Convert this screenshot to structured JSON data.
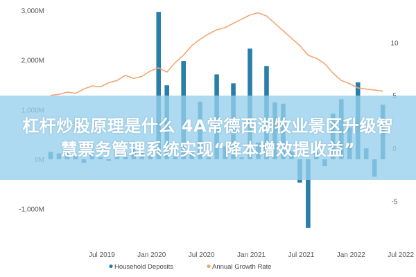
{
  "chart_data": {
    "type": "bar",
    "y_left": {
      "ylim": [
        -1500,
        3000
      ],
      "ticks": [
        3000,
        2000,
        1000,
        0,
        -1000
      ],
      "tick_labels": [
        "3,000M",
        "2,000M",
        "1,000M",
        "0M",
        "-1,000M"
      ]
    },
    "y_right": {
      "ylim": [
        -8.07,
        13.03
      ],
      "ticks": [
        10,
        5,
        0,
        -5
      ],
      "tick_labels": [
        "10",
        "5",
        "0",
        "-5"
      ]
    },
    "x_ticks": [
      "Jul 2019",
      "Jan 2020",
      "Jul 2020",
      "Jan 2021",
      "Jul 2021",
      "Jan 2022",
      "Jul 2022"
    ],
    "x_start": "2019-01",
    "series": [
      {
        "name": "Household Deposits",
        "kind": "bar",
        "axis": "left",
        "color": "#2a7fa8",
        "values": [
          150,
          120,
          180,
          60,
          -70,
          100,
          40,
          -30,
          180,
          50,
          220,
          150,
          60,
          2970,
          1490,
          60,
          1980,
          140,
          1160,
          40,
          1710,
          260,
          1530,
          40,
          2230,
          340,
          1880,
          1150,
          1120,
          160,
          -470,
          -1380,
          140,
          -140,
          920,
          1210,
          640,
          1550,
          220,
          -350,
          1100
        ]
      },
      {
        "name": "Annual Growth Rate",
        "kind": "line",
        "axis": "right",
        "color": "#f4a672",
        "values": [
          5.0,
          5.1,
          5.3,
          5.2,
          5.6,
          5.9,
          5.8,
          6.2,
          6.4,
          6.9,
          6.6,
          6.8,
          7.3,
          7.6,
          7.2,
          8.1,
          8.8,
          9.7,
          10.3,
          10.8,
          11.2,
          11.4,
          11.8,
          12.2,
          12.6,
          12.8,
          12.5,
          11.8,
          11.1,
          10.4,
          9.7,
          8.8,
          8.5,
          8.0,
          7.1,
          6.4,
          6.1,
          5.7,
          5.6,
          5.5,
          5.4
        ]
      }
    ],
    "legend_position": "bottom",
    "grid": false
  },
  "overlay": {
    "line1": "杠杆炒股原理是什么 4A常德西湖牧业景区升级智",
    "line2": "慧票务管理系统实现“降本增效提收益”"
  }
}
